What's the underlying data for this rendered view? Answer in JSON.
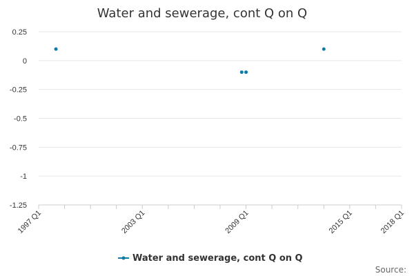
{
  "chart_data": {
    "type": "scatter",
    "title": "Water and sewerage, cont Q on Q",
    "xlabel": "",
    "ylabel": "",
    "ylim": [
      -1.25,
      0.25
    ],
    "yticks": [
      0.25,
      0,
      -0.25,
      -0.5,
      -0.75,
      -1,
      -1.25
    ],
    "ytick_labels": [
      "0.25",
      "0",
      "-0.25",
      "-0.5",
      "-0.75",
      "-1",
      "-1.25"
    ],
    "xlim": [
      1997.0,
      2018.0
    ],
    "xtick_labels": [
      "1997 Q1",
      "2003 Q1",
      "2009 Q1",
      "2015 Q1",
      "2018 Q1"
    ],
    "xtick_values": [
      1997.0,
      2003.0,
      2009.0,
      2015.0,
      2018.0
    ],
    "minor_tick_step_years": 1.5,
    "grid": "horizontal",
    "legend": "bottom",
    "series": [
      {
        "name": "Water and sewerage, cont Q on Q",
        "color": "#0d7aa8",
        "points": [
          {
            "x": 1998.0,
            "y": 0.1
          },
          {
            "x": 2008.75,
            "y": -0.1
          },
          {
            "x": 2009.0,
            "y": -0.1
          },
          {
            "x": 2013.5,
            "y": 0.1
          }
        ]
      }
    ],
    "credit": "Source:"
  }
}
